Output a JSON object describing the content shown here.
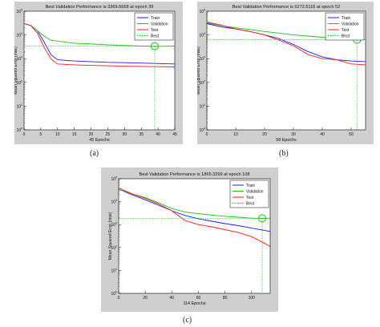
{
  "captions": [
    "(a)",
    "(b)",
    "(c)"
  ],
  "chart_data": [
    {
      "type": "line",
      "title": "Best Validation Performance is 3369.6668 at epoch 39",
      "xlabel": "45 Epochs",
      "ylabel": "Mean Squared Error  (mse)",
      "y_scale": "log",
      "xlim": [
        0,
        45
      ],
      "ylim": [
        1,
        100000
      ],
      "x_ticks": [
        0,
        5,
        10,
        15,
        20,
        25,
        30,
        35,
        40,
        45
      ],
      "y_ticks": [
        "10^0",
        "10^1",
        "10^2",
        "10^3",
        "10^4",
        "10^5"
      ],
      "legend": [
        "Train",
        "Validation",
        "Test",
        "Best"
      ],
      "legend_position": "top-right",
      "colors": {
        "Train": "#1a1aff",
        "Validation": "#18c018",
        "Test": "#ff1a1a",
        "Best": "#18c018"
      },
      "best": {
        "epoch": 39,
        "value": 3369.6668
      },
      "series": [
        {
          "name": "Train",
          "x": [
            0,
            2,
            4,
            6,
            8,
            10,
            15,
            20,
            25,
            30,
            35,
            40,
            45
          ],
          "values": [
            30000,
            25000,
            15000,
            5000,
            1500,
            900,
            800,
            750,
            700,
            680,
            650,
            620,
            600
          ]
        },
        {
          "name": "Validation",
          "x": [
            0,
            2,
            4,
            6,
            8,
            10,
            15,
            20,
            25,
            30,
            35,
            40,
            45
          ],
          "values": [
            30000,
            25000,
            15000,
            9000,
            6000,
            5500,
            4500,
            4200,
            3800,
            3600,
            3400,
            3300,
            3400
          ]
        },
        {
          "name": "Test",
          "x": [
            0,
            2,
            4,
            6,
            8,
            10,
            15,
            20,
            25,
            30,
            35,
            40,
            45
          ],
          "values": [
            30000,
            25000,
            12000,
            3000,
            1000,
            600,
            550,
            520,
            500,
            480,
            470,
            460,
            450
          ]
        }
      ]
    },
    {
      "type": "line",
      "title": "Best Validation Performance is 6272.6116 at epoch 52",
      "xlabel": "58 Epochs",
      "ylabel": "Mean Squared Error  (mse)",
      "y_scale": "log",
      "xlim": [
        0,
        55
      ],
      "ylim": [
        1,
        100000
      ],
      "x_ticks": [
        0,
        10,
        20,
        30,
        40,
        50
      ],
      "y_ticks": [
        "10^0",
        "10^1",
        "10^2",
        "10^3",
        "10^4",
        "10^5"
      ],
      "legend": [
        "Train",
        "Validation",
        "Test",
        "Best"
      ],
      "legend_position": "top-right",
      "colors": {
        "Train": "#1a1aff",
        "Validation": "#18c018",
        "Test": "#ff1a1a",
        "Best": "#18c018"
      },
      "best": {
        "epoch": 52,
        "value": 6272.6116
      },
      "series": [
        {
          "name": "Train",
          "x": [
            0,
            5,
            10,
            15,
            20,
            25,
            30,
            35,
            40,
            45,
            50,
            55
          ],
          "values": [
            30000,
            22000,
            18000,
            14000,
            10000,
            7000,
            4000,
            2000,
            1200,
            900,
            800,
            750
          ]
        },
        {
          "name": "Validation",
          "x": [
            0,
            5,
            10,
            15,
            20,
            25,
            30,
            35,
            40,
            45,
            50,
            55
          ],
          "values": [
            32000,
            25000,
            20000,
            17000,
            14000,
            12000,
            10000,
            9000,
            8000,
            7000,
            6500,
            6400
          ]
        },
        {
          "name": "Test",
          "x": [
            0,
            5,
            10,
            15,
            20,
            25,
            30,
            35,
            40,
            45,
            50,
            55
          ],
          "values": [
            35000,
            26000,
            18000,
            14000,
            10000,
            6000,
            3500,
            1500,
            1000,
            900,
            600,
            550
          ]
        }
      ]
    },
    {
      "type": "line",
      "title": "Best Validation Performance is 1865.3299 at epoch 108",
      "xlabel": "114 Epochs",
      "ylabel": "Mean Squared Error  (mse)",
      "y_scale": "log",
      "xlim": [
        0,
        114
      ],
      "ylim": [
        1,
        100000
      ],
      "x_ticks": [
        0,
        20,
        40,
        60,
        80,
        100
      ],
      "y_ticks": [
        "10^0",
        "10^1",
        "10^2",
        "10^3",
        "10^4",
        "10^5"
      ],
      "legend": [
        "Train",
        "Validation",
        "Test",
        "Best"
      ],
      "legend_position": "top-right",
      "colors": {
        "Train": "#1a1aff",
        "Validation": "#18c018",
        "Test": "#ff1a1a",
        "Best": "#18c018"
      },
      "best": {
        "epoch": 108,
        "value": 1865.3299
      },
      "series": [
        {
          "name": "Train",
          "x": [
            0,
            10,
            20,
            30,
            40,
            50,
            60,
            70,
            80,
            90,
            100,
            110,
            114
          ],
          "values": [
            35000,
            20000,
            12000,
            7000,
            4000,
            2500,
            1800,
            1400,
            1100,
            900,
            700,
            550,
            500
          ]
        },
        {
          "name": "Validation",
          "x": [
            0,
            10,
            20,
            30,
            40,
            50,
            60,
            70,
            80,
            90,
            100,
            110,
            114
          ],
          "values": [
            35000,
            22000,
            15000,
            9000,
            5000,
            3500,
            3000,
            2600,
            2300,
            2100,
            1900,
            1870,
            1900
          ]
        },
        {
          "name": "Test",
          "x": [
            0,
            10,
            20,
            30,
            40,
            50,
            60,
            70,
            80,
            90,
            100,
            110,
            114
          ],
          "values": [
            40000,
            22000,
            14000,
            8000,
            4000,
            1500,
            1000,
            800,
            600,
            450,
            300,
            150,
            110
          ]
        }
      ]
    }
  ]
}
